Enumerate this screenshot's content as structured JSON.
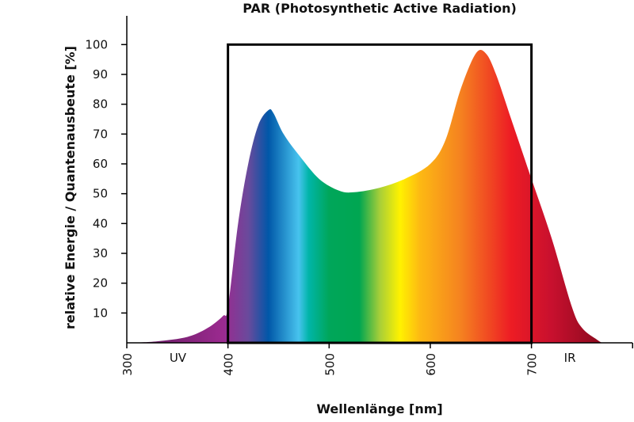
{
  "chart_data": {
    "type": "area",
    "title": "PAR (Photosynthetic Active Radiation)",
    "xlabel": "Wellenlänge [nm]",
    "ylabel": "relative Energie / Quantenausbeute [%]",
    "xlim": [
      300,
      800
    ],
    "ylim": [
      0,
      100
    ],
    "x_ticks": [
      300,
      400,
      500,
      600,
      700
    ],
    "y_ticks": [
      10,
      20,
      30,
      40,
      50,
      60,
      70,
      80,
      90,
      100
    ],
    "grid": false,
    "annotations": [
      {
        "text": "UV",
        "x": 350
      },
      {
        "text": "IR",
        "x": 740
      }
    ],
    "par_box": {
      "x_range": [
        400,
        700
      ],
      "y_max": 100
    },
    "series": [
      {
        "x": [
          305,
          330,
          360,
          380,
          395,
          400,
          410,
          420,
          430,
          440,
          445,
          455,
          470,
          490,
          510,
          525,
          550,
          575,
          600,
          615,
          630,
          645,
          655,
          665,
          680,
          700,
          720,
          740,
          750,
          765,
          770
        ],
        "y": [
          0,
          0.5,
          2,
          5,
          9,
          12,
          40,
          60,
          73,
          78,
          77,
          70,
          63,
          55,
          51,
          50.5,
          52,
          55,
          60,
          68,
          85,
          97,
          97,
          90,
          75,
          55,
          35,
          12,
          5,
          1,
          0
        ]
      }
    ],
    "fill_gradient": [
      {
        "nm": 300,
        "color": "#5c1a5a"
      },
      {
        "nm": 395,
        "color": "#9b2a8f"
      },
      {
        "nm": 420,
        "color": "#6a4a9c"
      },
      {
        "nm": 440,
        "color": "#0057a8"
      },
      {
        "nm": 470,
        "color": "#47c3ee"
      },
      {
        "nm": 480,
        "color": "#00b5a8"
      },
      {
        "nm": 500,
        "color": "#00a65a"
      },
      {
        "nm": 530,
        "color": "#00a651"
      },
      {
        "nm": 550,
        "color": "#a6ce39"
      },
      {
        "nm": 570,
        "color": "#fff200"
      },
      {
        "nm": 590,
        "color": "#fdb913"
      },
      {
        "nm": 630,
        "color": "#f58220"
      },
      {
        "nm": 680,
        "color": "#ed1c24"
      },
      {
        "nm": 720,
        "color": "#c8102e"
      },
      {
        "nm": 770,
        "color": "#8b0a1e"
      }
    ]
  }
}
